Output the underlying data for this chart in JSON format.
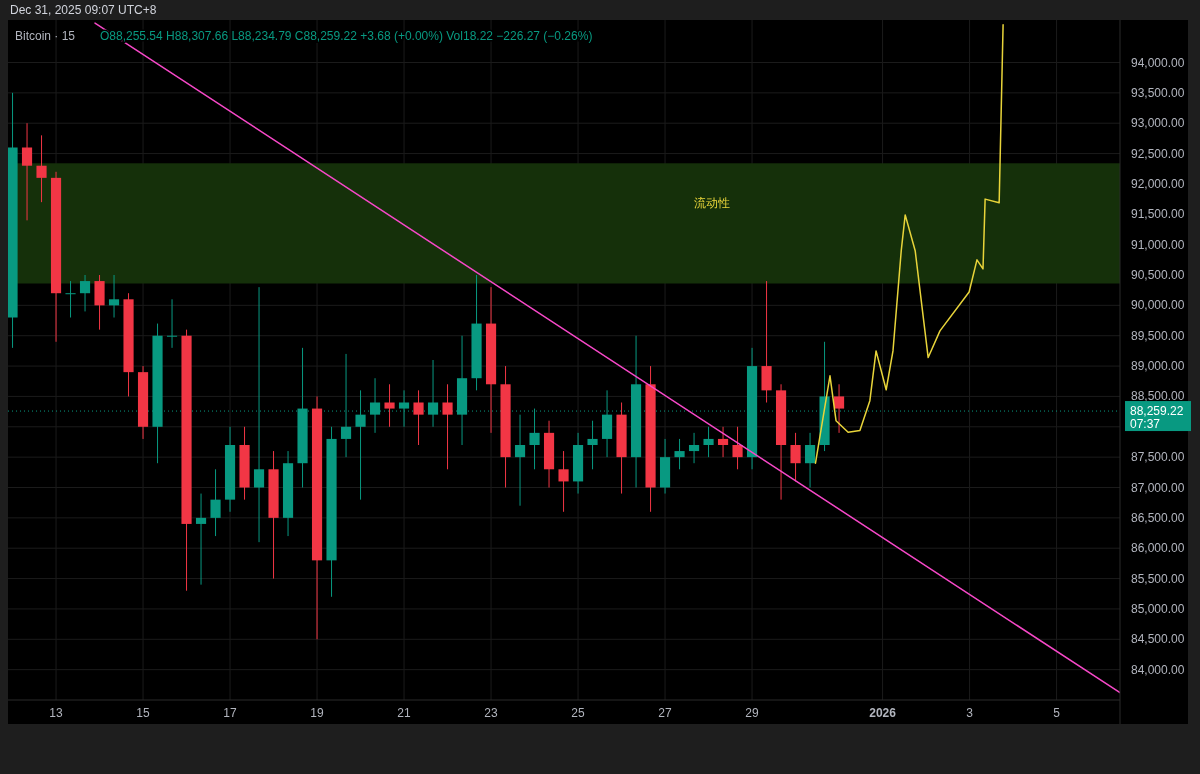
{
  "chart_data": {
    "type": "candlestick",
    "title": "Bitcoin · 15",
    "annotations": [
      "Dec 31, 2025 09:07 UTC+8",
      "O88,255.54 H88,307.66 L88,234.79 C88,259.22 +3.68 (+0.00%) Vol18.22 −226.27 (−0.26%)",
      "07:37"
    ],
    "x": [
      "2025-12-12T00:00",
      "2025-12-12T08:00",
      "2025-12-12T16:00",
      "2025-12-13T00:00",
      "2025-12-13T08:00",
      "2025-12-13T16:00",
      "2025-12-14T00:00",
      "2025-12-14T08:00",
      "2025-12-14T16:00",
      "2025-12-15T00:00",
      "2025-12-15T08:00",
      "2025-12-15T16:00",
      "2025-12-16T00:00",
      "2025-12-16T08:00",
      "2025-12-16T16:00",
      "2025-12-17T00:00",
      "2025-12-17T08:00",
      "2025-12-17T16:00",
      "2025-12-18T00:00",
      "2025-12-18T08:00",
      "2025-12-18T16:00",
      "2025-12-19T00:00",
      "2025-12-19T08:00",
      "2025-12-19T16:00",
      "2025-12-20T00:00",
      "2025-12-20T08:00",
      "2025-12-20T16:00",
      "2025-12-21T00:00",
      "2025-12-21T08:00",
      "2025-12-21T16:00",
      "2025-12-22T00:00",
      "2025-12-22T08:00",
      "2025-12-22T16:00",
      "2025-12-23T00:00",
      "2025-12-23T08:00",
      "2025-12-23T16:00",
      "2025-12-24T00:00",
      "2025-12-24T08:00",
      "2025-12-24T16:00",
      "2025-12-25T00:00",
      "2025-12-25T08:00",
      "2025-12-25T16:00",
      "2025-12-26T00:00",
      "2025-12-26T08:00",
      "2025-12-26T16:00",
      "2025-12-27T00:00",
      "2025-12-27T08:00",
      "2025-12-27T16:00",
      "2025-12-28T00:00",
      "2025-12-28T08:00",
      "2025-12-28T16:00",
      "2025-12-29T00:00",
      "2025-12-29T08:00",
      "2025-12-29T16:00",
      "2025-12-30T00:00",
      "2025-12-30T08:00",
      "2025-12-30T16:00",
      "2025-12-31T00:00"
    ],
    "ohlc": [
      [
        89800,
        93500,
        89300,
        92600
      ],
      [
        92600,
        93000,
        91400,
        92300
      ],
      [
        92300,
        92800,
        91700,
        92100
      ],
      [
        92100,
        92200,
        89400,
        90200
      ],
      [
        90200,
        90400,
        89800,
        90200
      ],
      [
        90200,
        90500,
        89900,
        90400
      ],
      [
        90400,
        90500,
        89600,
        90000
      ],
      [
        90000,
        90500,
        89800,
        90100
      ],
      [
        90100,
        90200,
        88500,
        88900
      ],
      [
        88900,
        89000,
        87800,
        88000
      ],
      [
        88000,
        89700,
        87400,
        89500
      ],
      [
        89500,
        90100,
        89300,
        89500
      ],
      [
        89500,
        89600,
        85300,
        86400
      ],
      [
        86400,
        86900,
        85400,
        86500
      ],
      [
        86500,
        87300,
        86200,
        86800
      ],
      [
        86800,
        88000,
        86600,
        87700
      ],
      [
        87700,
        88000,
        86800,
        87000
      ],
      [
        87000,
        90300,
        86100,
        87300
      ],
      [
        87300,
        87600,
        85500,
        86500
      ],
      [
        86500,
        87600,
        86200,
        87400
      ],
      [
        87400,
        89300,
        87000,
        88300
      ],
      [
        88300,
        88500,
        84500,
        85800
      ],
      [
        85800,
        88000,
        85200,
        87800
      ],
      [
        87800,
        89200,
        87500,
        88000
      ],
      [
        88000,
        88600,
        86800,
        88200
      ],
      [
        88200,
        88800,
        87900,
        88400
      ],
      [
        88400,
        88700,
        88000,
        88300
      ],
      [
        88300,
        88600,
        88000,
        88400
      ],
      [
        88400,
        88600,
        87700,
        88200
      ],
      [
        88200,
        89100,
        88000,
        88400
      ],
      [
        88400,
        88700,
        87300,
        88200
      ],
      [
        88200,
        89500,
        87700,
        88800
      ],
      [
        88800,
        90500,
        88600,
        89700
      ],
      [
        89700,
        90300,
        87900,
        88700
      ],
      [
        88700,
        89000,
        87000,
        87500
      ],
      [
        87500,
        88200,
        86700,
        87700
      ],
      [
        87700,
        88300,
        87300,
        87900
      ],
      [
        87900,
        88100,
        87000,
        87300
      ],
      [
        87300,
        87600,
        86600,
        87100
      ],
      [
        87100,
        87900,
        86900,
        87700
      ],
      [
        87700,
        88100,
        87300,
        87800
      ],
      [
        87800,
        88600,
        87500,
        88200
      ],
      [
        88200,
        88400,
        86900,
        87500
      ],
      [
        87500,
        89500,
        87000,
        88700
      ],
      [
        88700,
        89000,
        86600,
        87000
      ],
      [
        87000,
        87800,
        86900,
        87500
      ],
      [
        87500,
        87800,
        87300,
        87600
      ],
      [
        87600,
        87900,
        87400,
        87700
      ],
      [
        87700,
        88000,
        87500,
        87800
      ],
      [
        87800,
        88000,
        87500,
        87700
      ],
      [
        87700,
        88000,
        87300,
        87500
      ],
      [
        87500,
        89300,
        87300,
        89000
      ],
      [
        89000,
        90400,
        88400,
        88600
      ],
      [
        88600,
        88700,
        86800,
        87700
      ],
      [
        87700,
        87900,
        87100,
        87400
      ],
      [
        87400,
        87900,
        87000,
        87700
      ],
      [
        87700,
        89400,
        87600,
        88500
      ],
      [
        88500,
        88700,
        87900,
        88300
      ]
    ],
    "series": [
      {
        "type": "line",
        "color": "#f748c8",
        "x": [
          "2025-12-13T21:30",
          "2026-01-06T11:00"
        ],
        "values": [
          94650,
          83620
        ]
      },
      {
        "type": "line",
        "color": "#e8d43a",
        "x": [
          "2025-12-30T11:00",
          "2025-12-30T19:00",
          "2025-12-30T22:20",
          "2025-12-31T05:00",
          "2025-12-31T11:30",
          "2025-12-31T17:00",
          "2025-12-31T20:25",
          "2026-01-01T02:00",
          "2026-01-01T05:45",
          "2026-01-01T10:20",
          "2026-01-01T12:30",
          "2026-01-01T18:00",
          "2026-01-02T01:10",
          "2026-01-02T07:40",
          "2026-01-02T23:45",
          "2026-01-03T04:05",
          "2026-01-03T07:25",
          "2026-01-03T08:35",
          "2026-01-03T16:20",
          "2026-01-03T18:30"
        ],
        "values": [
          87400,
          88840,
          88100,
          87910,
          87940,
          88430,
          89250,
          88610,
          89250,
          90910,
          91490,
          90900,
          89140,
          89580,
          90220,
          90750,
          90600,
          91750,
          91690,
          94620
        ]
      }
    ],
    "bands": [
      {
        "axis": "y",
        "from": 90360,
        "to": 92340,
        "label": "流动性",
        "color": "#15300a"
      }
    ],
    "ref_lines": [
      {
        "axis": "y",
        "value": 88259.22,
        "label": "88,259.22",
        "color": "#089981",
        "line_style": "dotted"
      }
    ],
    "xlim": [
      "2025-12-11T21:30",
      "2026-01-06T11:00"
    ],
    "xticks": [
      {
        "value": "2025-12-13",
        "label": "13"
      },
      {
        "value": "2025-12-15",
        "label": "15"
      },
      {
        "value": "2025-12-17",
        "label": "17"
      },
      {
        "value": "2025-12-19",
        "label": "19"
      },
      {
        "value": "2025-12-21",
        "label": "21"
      },
      {
        "value": "2025-12-23",
        "label": "23"
      },
      {
        "value": "2025-12-25",
        "label": "25"
      },
      {
        "value": "2025-12-27",
        "label": "27"
      },
      {
        "value": "2025-12-29",
        "label": "29"
      },
      {
        "value": "2026-01-01",
        "label": "2026"
      },
      {
        "value": "2026-01-03",
        "label": "3"
      },
      {
        "value": "2026-01-05",
        "label": "5"
      }
    ],
    "ylim": [
      83500,
      94700
    ],
    "yticks": [
      {
        "value": 84000,
        "label": "84,000.00"
      },
      {
        "value": 84500,
        "label": "84,500.00"
      },
      {
        "value": 85000,
        "label": "85,000.00"
      },
      {
        "value": 85500,
        "label": "85,500.00"
      },
      {
        "value": 86000,
        "label": "86,000.00"
      },
      {
        "value": 86500,
        "label": "86,500.00"
      },
      {
        "value": 87000,
        "label": "87,000.00"
      },
      {
        "value": 87500,
        "label": "87,500.00"
      },
      {
        "value": 88000,
        "label": null
      },
      {
        "value": 88500,
        "label": "88,500.00"
      },
      {
        "value": 89000,
        "label": "89,000.00"
      },
      {
        "value": 89500,
        "label": "89,500.00"
      },
      {
        "value": 90000,
        "label": "90,000.00"
      },
      {
        "value": 90500,
        "label": "90,500.00"
      },
      {
        "value": 91000,
        "label": "91,000.00"
      },
      {
        "value": 91500,
        "label": "91,500.00"
      },
      {
        "value": 92000,
        "label": "92,000.00"
      },
      {
        "value": 92500,
        "label": "92,500.00"
      },
      {
        "value": 93000,
        "label": "93,000.00"
      },
      {
        "value": 93500,
        "label": "93,500.00"
      },
      {
        "value": 94000,
        "label": "94,000.00"
      }
    ],
    "grid": true
  }
}
